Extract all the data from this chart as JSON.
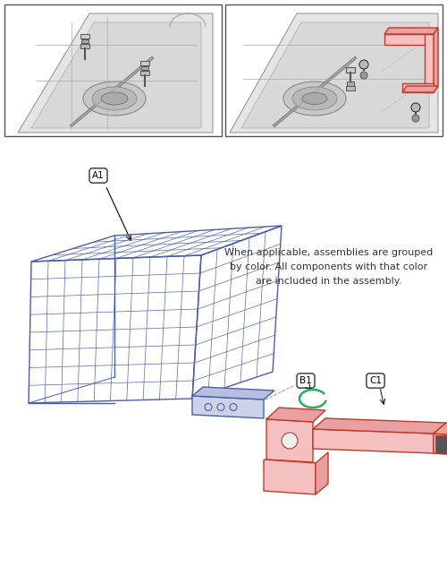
{
  "background_color": "#ffffff",
  "basket_color": "#4a5fa5",
  "bracket_color": "#c0392b",
  "bracket_fill": "#f5c0c0",
  "bracket_fill_dark": "#e8a0a0",
  "spring_color": "#27ae60",
  "gray_line": "#888888",
  "dark_line": "#444444",
  "annotation_text": "When applicable, assemblies are grouped\nby color. All components with that color\nare included in the assembly.",
  "annotation_fontsize": 8.0,
  "label_A1": "A1",
  "label_B1": "B1",
  "label_C1": "C1"
}
